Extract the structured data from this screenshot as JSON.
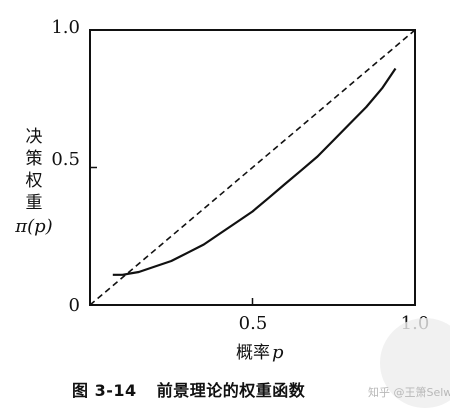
{
  "chart_data": {
    "type": "line",
    "xlim": [
      0,
      1
    ],
    "ylim": [
      0,
      1
    ],
    "x_ticks": [
      "0.5",
      "1.0"
    ],
    "y_ticks": [
      "0",
      "0.5",
      "1.0"
    ],
    "xlabel_text": "概率",
    "xlabel_var": "p",
    "ylabel_lines": [
      "决",
      "策",
      "权",
      "重",
      "π(p)"
    ],
    "series": [
      {
        "style": "solid",
        "x": [
          0.07,
          0.1,
          0.15,
          0.2,
          0.25,
          0.3,
          0.35,
          0.4,
          0.45,
          0.5,
          0.55,
          0.6,
          0.65,
          0.7,
          0.75,
          0.8,
          0.85,
          0.9,
          0.94
        ],
        "y": [
          0.11,
          0.11,
          0.12,
          0.14,
          0.16,
          0.19,
          0.22,
          0.26,
          0.3,
          0.34,
          0.39,
          0.44,
          0.49,
          0.54,
          0.6,
          0.66,
          0.72,
          0.79,
          0.86
        ]
      },
      {
        "style": "dashed",
        "x": [
          0,
          1
        ],
        "y": [
          0,
          1
        ]
      }
    ]
  },
  "caption": {
    "number": "图 3-14",
    "title": "前景理论的权重函数"
  },
  "watermark": "知乎 @王箫Selwa"
}
